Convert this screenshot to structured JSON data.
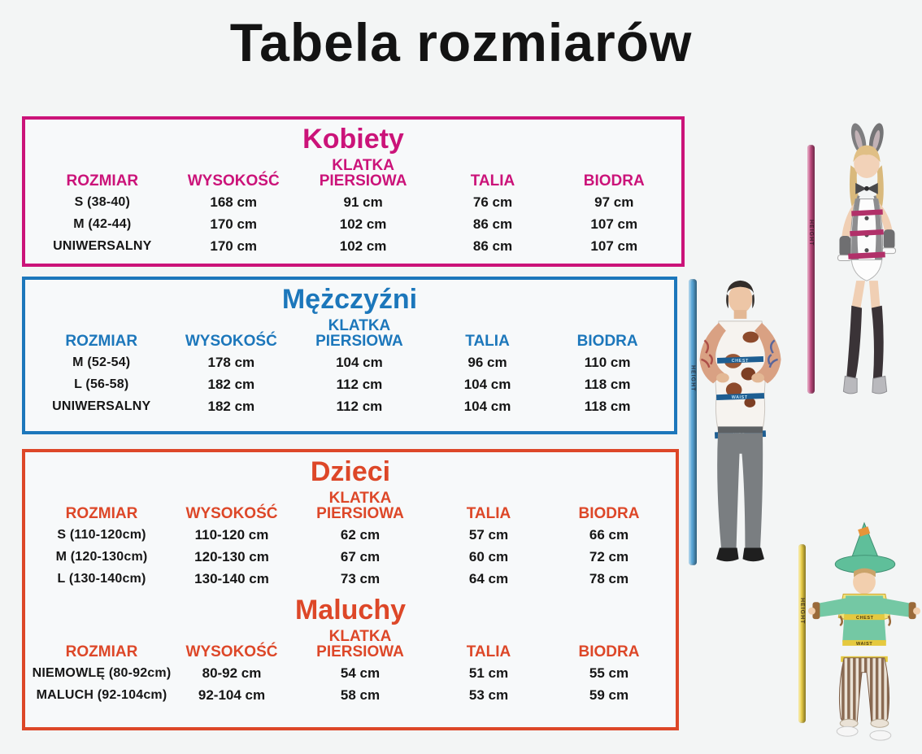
{
  "page": {
    "title": "Tabela rozmiarów",
    "background_color": "#f3f5f5",
    "title_color": "#131313"
  },
  "sections": [
    {
      "id": "kobiety",
      "title": "Kobiety",
      "accent": "#cb1379",
      "headers": [
        [
          "ROZMIAR"
        ],
        [
          "WYSOKOŚĆ"
        ],
        [
          "KLATKA",
          "PIERSIOWA"
        ],
        [
          "TALIA"
        ],
        [
          "BIODRA"
        ]
      ],
      "rows": [
        [
          "S (38-40)",
          "168 cm",
          "91 cm",
          "76 cm",
          "97 cm"
        ],
        [
          "M (42-44)",
          "170 cm",
          "102 cm",
          "86 cm",
          "107 cm"
        ],
        [
          "UNIWERSALNY",
          "170 cm",
          "102 cm",
          "86 cm",
          "107 cm"
        ]
      ]
    },
    {
      "id": "mezczyzni",
      "title": "Mężczyźni",
      "accent": "#1c77bb",
      "headers": [
        [
          "ROZMIAR"
        ],
        [
          "WYSOKOŚĆ"
        ],
        [
          "KLATKA",
          "PIERSIOWA"
        ],
        [
          "TALIA"
        ],
        [
          "BIODRA"
        ]
      ],
      "rows": [
        [
          "M (52-54)",
          "178 cm",
          "104 cm",
          "96 cm",
          "110 cm"
        ],
        [
          "L (56-58)",
          "182 cm",
          "112 cm",
          "104 cm",
          "118 cm"
        ],
        [
          "UNIWERSALNY",
          "182 cm",
          "112 cm",
          "104 cm",
          "118 cm"
        ]
      ]
    },
    {
      "id": "dzieci",
      "title": "Dzieci",
      "accent": "#dd4728",
      "headers": [
        [
          "ROZMIAR"
        ],
        [
          "WYSOKOŚĆ"
        ],
        [
          "KLATKA",
          "PIERSIOWA"
        ],
        [
          "TALIA"
        ],
        [
          "BIODRA"
        ]
      ],
      "rows": [
        [
          "S (110-120cm)",
          "110-120 cm",
          "62 cm",
          "57 cm",
          "66 cm"
        ],
        [
          "M (120-130cm)",
          "120-130 cm",
          "67 cm",
          "60 cm",
          "72 cm"
        ],
        [
          "L (130-140cm)",
          "130-140 cm",
          "73 cm",
          "64 cm",
          "78 cm"
        ]
      ]
    },
    {
      "id": "maluchy",
      "title": "Maluchy",
      "accent": "#dd4728",
      "headers": [
        [
          "ROZMIAR"
        ],
        [
          "WYSOKOŚĆ"
        ],
        [
          "KLATKA",
          "PIERSIOWA"
        ],
        [
          "TALIA"
        ],
        [
          "BIODRA"
        ]
      ],
      "rows": [
        [
          "NIEMOWLĘ (80-92cm)",
          "80-92 cm",
          "54 cm",
          "51 cm",
          "55 cm"
        ],
        [
          "MALUCH (92-104cm)",
          "92-104 cm",
          "58 cm",
          "53 cm",
          "59 cm"
        ]
      ]
    }
  ],
  "poles": {
    "women": {
      "color": "#c34a80",
      "label": "HEIGHT"
    },
    "men": {
      "color": "#57a5d6",
      "label": "HEIGHT"
    },
    "kids": {
      "color": "#edd044",
      "label": "HEIGHT"
    }
  },
  "figures": {
    "band_labels": {
      "chest": "CHEST",
      "waist": "WAIST",
      "hips": "HIPS"
    },
    "band_colors": {
      "women": "#b13069",
      "men": "#1d5e92",
      "kids": "#e5c93f"
    }
  }
}
